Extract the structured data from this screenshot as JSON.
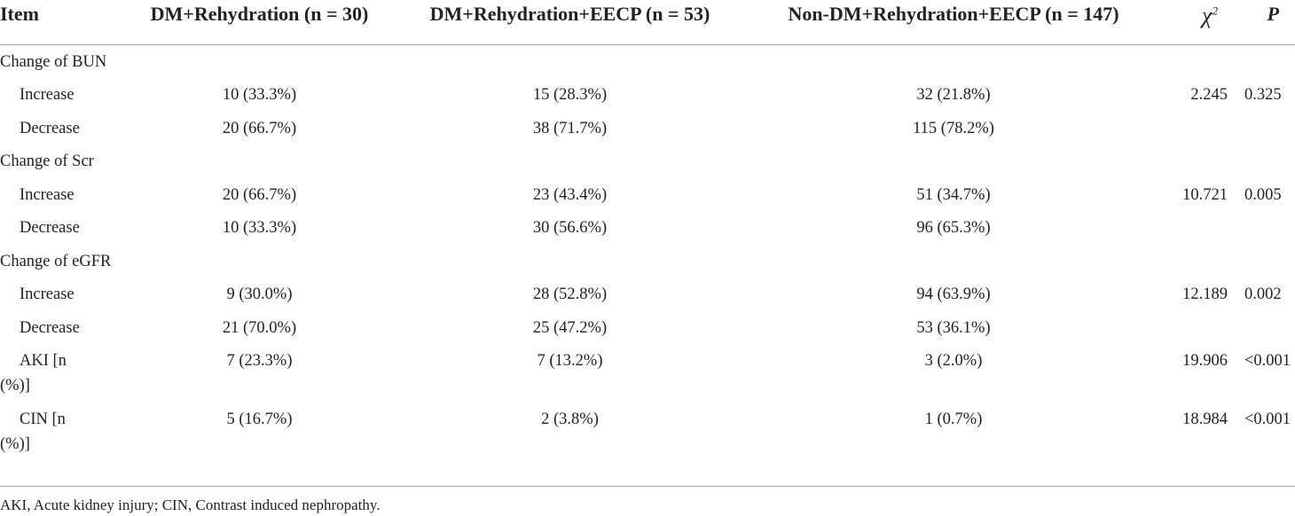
{
  "table": {
    "headers": [
      "Item",
      "DM+Rehydration (n = 30)",
      "DM+Rehydration+EECP (n = 53)",
      "Non-DM+Rehydration+EECP (n = 147)",
      {
        "base": "χ",
        "sup": "2"
      },
      "P"
    ],
    "rows": [
      {
        "item": "Change of BUN"
      },
      {
        "item": "Increase",
        "cells": [
          "10 (33.3%)",
          "15 (28.3%)",
          "32 (21.8%)",
          "2.245",
          "0.325"
        ]
      },
      {
        "item": "Decrease",
        "cells": [
          "20 (66.7%)",
          "38 (71.7%)",
          "115 (78.2%)"
        ]
      },
      {
        "item": "Change of Scr"
      },
      {
        "item": "Increase",
        "cells": [
          "20 (66.7%)",
          "23 (43.4%)",
          "51 (34.7%)",
          "10.721",
          "0.005"
        ]
      },
      {
        "item": "Decrease",
        "cells": [
          "10 (33.3%)",
          "30 (56.6%)",
          "96 (65.3%)"
        ]
      },
      {
        "item": "Change of eGFR"
      },
      {
        "item": "Increase",
        "cells": [
          "9 (30.0%)",
          "28 (52.8%)",
          "94 (63.9%)",
          "12.189",
          "0.002"
        ]
      },
      {
        "item": "Decrease",
        "cells": [
          "21 (70.0%)",
          "25 (47.2%)",
          "53 (36.1%)"
        ]
      },
      {
        "item": "AKI [n (%)]",
        "cells": [
          "7 (23.3%)",
          "7 (13.2%)",
          "3 (2.0%)",
          "19.906",
          "<0.001"
        ]
      },
      {
        "item": "CIN [n (%)]",
        "cells": [
          "5 (16.7%)",
          "2 (3.8%)",
          "1 (0.7%)",
          "18.984",
          "<0.001"
        ]
      }
    ]
  },
  "footnote": "AKI, Acute kidney injury; CIN, Contrast induced nephropathy."
}
